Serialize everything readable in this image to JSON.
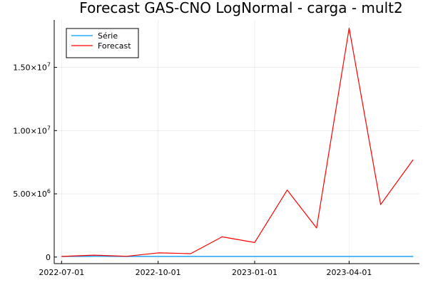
{
  "chart_data": {
    "type": "line",
    "title": "Forecast GAS-CNO LogNormal - carga - mult2",
    "xlabel": "",
    "ylabel": "",
    "x_ticks": [
      "2022-07-01",
      "2022-10-01",
      "2023-01-01",
      "2023-04-01"
    ],
    "y_ticks": [
      {
        "value": 0,
        "label": "0",
        "exp": ""
      },
      {
        "value": 5000000,
        "label": "5.00×10",
        "exp": "6"
      },
      {
        "value": 10000000,
        "label": "1.00×10",
        "exp": "7"
      },
      {
        "value": 15000000,
        "label": "1.50×10",
        "exp": "7"
      }
    ],
    "xlim": [
      "2022-06-24",
      "2023-06-07"
    ],
    "ylim": [
      -520000,
      18750000
    ],
    "grid": true,
    "legend_position": "top-left",
    "series": [
      {
        "name": "Série",
        "color": "#009AFA",
        "x": [
          "2022-07-01",
          "2022-08-01",
          "2022-09-01",
          "2022-10-01",
          "2022-11-01",
          "2022-12-01",
          "2023-01-01",
          "2023-02-01",
          "2023-03-01",
          "2023-04-01",
          "2023-05-01",
          "2023-06-01"
        ],
        "values": [
          50000,
          60000,
          50000,
          50000,
          50000,
          50000,
          50000,
          50000,
          50000,
          50000,
          50000,
          50000
        ]
      },
      {
        "name": "Forecast",
        "color": "#FF0000",
        "x": [
          "2022-07-01",
          "2022-08-01",
          "2022-09-01",
          "2022-10-01",
          "2022-11-01",
          "2022-12-01",
          "2023-01-01",
          "2023-02-01",
          "2023-03-01",
          "2023-04-01",
          "2023-05-01",
          "2023-06-01"
        ],
        "values": [
          50000,
          150000,
          60000,
          330000,
          270000,
          1600000,
          1150000,
          5300000,
          2300000,
          18100000,
          4150000,
          7700000
        ]
      }
    ]
  }
}
